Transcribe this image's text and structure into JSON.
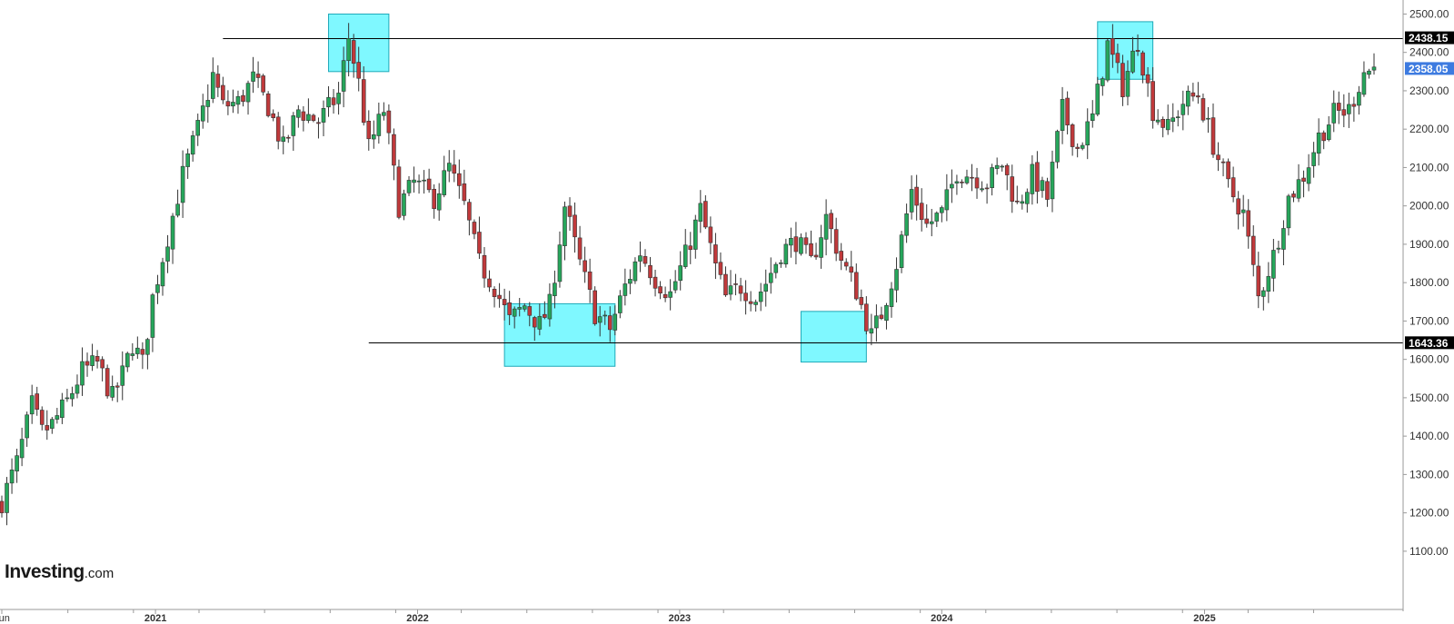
{
  "brand": {
    "name": "Investing",
    "suffix": ".com"
  },
  "colors": {
    "up": "#26a65b",
    "down": "#c0393b",
    "box_fill": "#7ff8ff",
    "box_stroke": "#1fa9b8",
    "marker_black": "#000000",
    "marker_blue": "#3d7be0"
  },
  "chart_data": {
    "type": "candlestick",
    "xlim": [
      "2020-06-01",
      "2025-08-25"
    ],
    "ylim": [
      1050,
      2520
    ],
    "y_ticks": [
      "2500.00",
      "2400.00",
      "2300.00",
      "2200.00",
      "2100.00",
      "2000.00",
      "1900.00",
      "1800.00",
      "1700.00",
      "1600.00",
      "1500.00",
      "1400.00",
      "1300.00",
      "1200.00",
      "1100.00"
    ],
    "x_ticks": [
      {
        "label": "Jun",
        "date": "2020-06-01"
      },
      {
        "label": "2021",
        "date": "2021-01-01"
      },
      {
        "label": "2022",
        "date": "2022-01-01"
      },
      {
        "label": "2023",
        "date": "2023-01-01"
      },
      {
        "label": "2024",
        "date": "2024-01-01"
      },
      {
        "label": "2025",
        "date": "2025-01-01"
      }
    ],
    "price_markers": [
      {
        "value": 2438.15,
        "label": "2438.15",
        "style": "black"
      },
      {
        "value": 2358.05,
        "label": "2358.05",
        "style": "blue"
      },
      {
        "value": 1643.36,
        "label": "1643.36",
        "style": "black"
      }
    ],
    "horizontal_lines": [
      {
        "value": 2438.15,
        "from": "2021-04-05"
      },
      {
        "value": 1643.36,
        "from": "2021-10-25"
      }
    ],
    "highlight_boxes": [
      {
        "from": "2021-08-30",
        "to": "2021-11-22",
        "low": 2350,
        "high": 2500
      },
      {
        "from": "2022-05-02",
        "to": "2022-10-03",
        "low": 1582,
        "high": 1745
      },
      {
        "from": "2023-06-19",
        "to": "2023-09-18",
        "low": 1593,
        "high": 1725
      },
      {
        "from": "2024-08-05",
        "to": "2024-10-21",
        "low": 2330,
        "high": 2480
      }
    ],
    "series_path": [
      [
        "2020-06-01",
        1230
      ],
      [
        "2020-06-22",
        1330
      ],
      [
        "2020-07-13",
        1480
      ],
      [
        "2020-07-27",
        1410
      ],
      [
        "2020-08-10",
        1430
      ],
      [
        "2020-08-31",
        1490
      ],
      [
        "2020-09-21",
        1570
      ],
      [
        "2020-10-12",
        1590
      ],
      [
        "2020-11-02",
        1500
      ],
      [
        "2020-11-16",
        1560
      ],
      [
        "2020-11-30",
        1640
      ],
      [
        "2020-12-14",
        1590
      ],
      [
        "2020-12-28",
        1760
      ],
      [
        "2021-01-18",
        1920
      ],
      [
        "2021-02-08",
        2080
      ],
      [
        "2021-03-01",
        2200
      ],
      [
        "2021-03-22",
        2340
      ],
      [
        "2021-04-05",
        2260
      ],
      [
        "2021-04-26",
        2270
      ],
      [
        "2021-05-17",
        2330
      ],
      [
        "2021-06-07",
        2260
      ],
      [
        "2021-06-28",
        2150
      ],
      [
        "2021-07-19",
        2250
      ],
      [
        "2021-08-16",
        2220
      ],
      [
        "2021-09-13",
        2290
      ],
      [
        "2021-09-27",
        2440
      ],
      [
        "2021-10-11",
        2320
      ],
      [
        "2021-10-25",
        2150
      ],
      [
        "2021-11-15",
        2250
      ],
      [
        "2021-12-06",
        2000
      ],
      [
        "2021-12-27",
        2060
      ],
      [
        "2022-01-24",
        2020
      ],
      [
        "2022-02-14",
        2100
      ],
      [
        "2022-03-07",
        2000
      ],
      [
        "2022-03-28",
        1850
      ],
      [
        "2022-04-18",
        1790
      ],
      [
        "2022-05-09",
        1700
      ],
      [
        "2022-05-30",
        1740
      ],
      [
        "2022-06-20",
        1690
      ],
      [
        "2022-07-04",
        1740
      ],
      [
        "2022-07-25",
        2000
      ],
      [
        "2022-08-15",
        1850
      ],
      [
        "2022-09-05",
        1720
      ],
      [
        "2022-09-26",
        1680
      ],
      [
        "2022-10-17",
        1790
      ],
      [
        "2022-11-07",
        1880
      ],
      [
        "2022-11-28",
        1810
      ],
      [
        "2022-12-19",
        1770
      ],
      [
        "2023-01-09",
        1870
      ],
      [
        "2023-01-30",
        1990
      ],
      [
        "2023-02-20",
        1840
      ],
      [
        "2023-03-06",
        1760
      ],
      [
        "2023-03-27",
        1790
      ],
      [
        "2023-04-17",
        1760
      ],
      [
        "2023-05-01",
        1800
      ],
      [
        "2023-05-22",
        1880
      ],
      [
        "2023-06-12",
        1910
      ],
      [
        "2023-07-03",
        1850
      ],
      [
        "2023-07-24",
        1970
      ],
      [
        "2023-08-14",
        1860
      ],
      [
        "2023-09-04",
        1780
      ],
      [
        "2023-09-25",
        1660
      ],
      [
        "2023-10-09",
        1720
      ],
      [
        "2023-10-30",
        1850
      ],
      [
        "2023-11-20",
        2040
      ],
      [
        "2023-12-11",
        1950
      ],
      [
        "2024-01-01",
        1980
      ],
      [
        "2024-01-22",
        2090
      ],
      [
        "2024-02-12",
        2080
      ],
      [
        "2024-03-04",
        2060
      ],
      [
        "2024-03-25",
        2110
      ],
      [
        "2024-04-15",
        2000
      ],
      [
        "2024-05-06",
        2080
      ],
      [
        "2024-05-27",
        2020
      ],
      [
        "2024-06-17",
        2250
      ],
      [
        "2024-07-08",
        2150
      ],
      [
        "2024-07-29",
        2230
      ],
      [
        "2024-08-19",
        2420
      ],
      [
        "2024-09-09",
        2310
      ],
      [
        "2024-09-30",
        2430
      ],
      [
        "2024-10-21",
        2250
      ],
      [
        "2024-11-11",
        2200
      ],
      [
        "2024-12-02",
        2270
      ],
      [
        "2024-12-23",
        2290
      ],
      [
        "2025-01-13",
        2160
      ],
      [
        "2025-02-03",
        2050
      ],
      [
        "2025-02-24",
        1980
      ],
      [
        "2025-03-17",
        1760
      ],
      [
        "2025-04-07",
        1870
      ],
      [
        "2025-04-28",
        2020
      ],
      [
        "2025-05-19",
        2080
      ],
      [
        "2025-06-09",
        2180
      ],
      [
        "2025-06-30",
        2240
      ],
      [
        "2025-07-21",
        2250
      ],
      [
        "2025-08-11",
        2350
      ],
      [
        "2025-08-25",
        2358
      ]
    ]
  }
}
